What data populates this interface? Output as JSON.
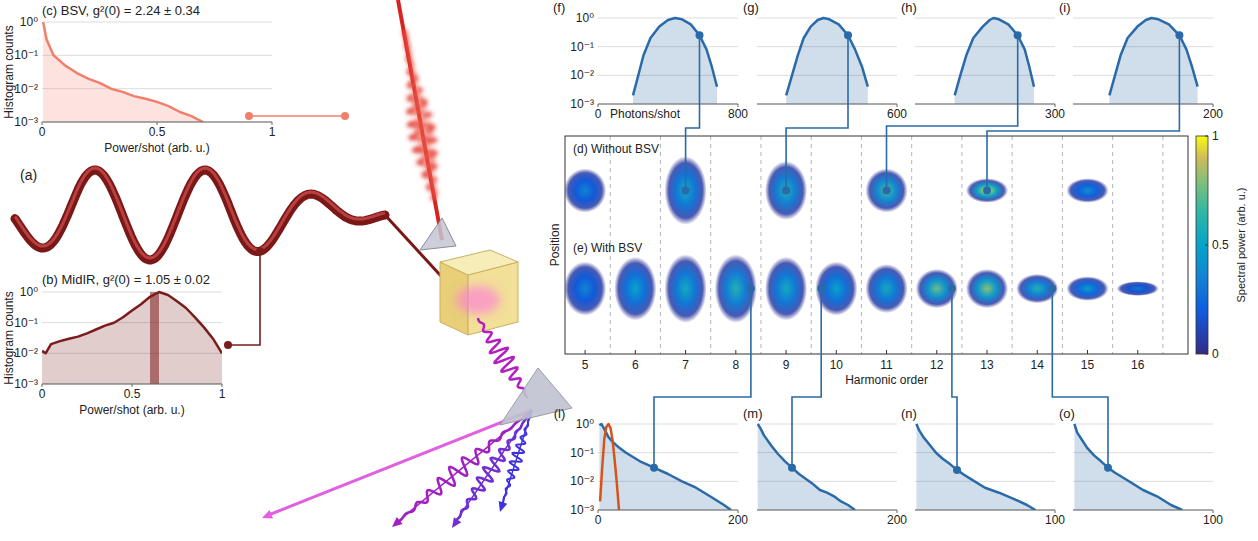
{
  "chart_data": [
    {
      "type": "schematic",
      "title": "(a)"
    },
    {
      "type": "area",
      "title": "(c) BSV, g²(0) = 2.24 ± 0.34",
      "xlabel": "Power/shot (arb. u.)",
      "ylabel": "Histogram counts",
      "log": "y",
      "grid": true,
      "xlim": [
        0,
        1
      ],
      "xticks": [
        0,
        0.5,
        1
      ],
      "ylim": [
        0.001,
        1
      ],
      "yticks": [
        {
          "value": 1,
          "label": "10⁰"
        },
        {
          "value": 0.1,
          "label": "10⁻¹"
        },
        {
          "value": 0.01,
          "label": "10⁻²"
        },
        {
          "value": 0.001,
          "label": "10⁻³"
        }
      ],
      "series": [
        {
          "color": "#f0806c",
          "x": [
            0.005,
            0.02,
            0.05,
            0.1,
            0.15,
            0.2,
            0.25,
            0.3,
            0.35,
            0.4,
            0.45,
            0.5,
            0.55,
            0.6,
            0.65,
            0.7
          ],
          "values": [
            1,
            0.3,
            0.1,
            0.05,
            0.03,
            0.02,
            0.015,
            0.01,
            0.008,
            0.006,
            0.005,
            0.004,
            0.003,
            0.002,
            0.0015,
            0.001
          ]
        }
      ]
    },
    {
      "type": "area",
      "title": "(b) MidIR, g²(0) = 1.05 ± 0.02",
      "xlabel": "Power/shot (arb. u.)",
      "ylabel": "Histogram counts",
      "log": "y",
      "grid": true,
      "xlim": [
        0,
        1
      ],
      "xticks": [
        0,
        0.5,
        1
      ],
      "ylim": [
        0.001,
        1
      ],
      "yticks": [
        {
          "value": 1,
          "label": "10⁰"
        },
        {
          "value": 0.1,
          "label": "10⁻¹"
        },
        {
          "value": 0.01,
          "label": "10⁻²"
        },
        {
          "value": 0.001,
          "label": "10⁻³"
        }
      ],
      "band": [
        0.6,
        0.65
      ],
      "series": [
        {
          "color": "#7b1c1c",
          "x": [
            0,
            0.02,
            0.05,
            0.1,
            0.15,
            0.2,
            0.25,
            0.3,
            0.35,
            0.4,
            0.45,
            0.5,
            0.55,
            0.6,
            0.65,
            0.7,
            0.75,
            0.8,
            0.85,
            0.9,
            0.95,
            1
          ],
          "values": [
            0.012,
            0.01,
            0.02,
            0.025,
            0.03,
            0.035,
            0.045,
            0.06,
            0.08,
            0.1,
            0.15,
            0.25,
            0.4,
            0.7,
            1,
            0.8,
            0.5,
            0.3,
            0.15,
            0.07,
            0.03,
            0.01
          ]
        }
      ]
    },
    {
      "type": "area",
      "title": "(f)",
      "xlabel": "Photons/shot",
      "log": "y",
      "grid": true,
      "harmonic": 7,
      "xlim": [
        0,
        800
      ],
      "xticks": [
        0,
        800
      ],
      "ylim": [
        0.001,
        1
      ],
      "yticks": [
        {
          "value": 1,
          "label": "10⁰"
        },
        {
          "value": 0.1,
          "label": "10⁻¹"
        },
        {
          "value": 0.01,
          "label": "10⁻²"
        },
        {
          "value": 0.001,
          "label": "10⁻³"
        }
      ],
      "series": [
        {
          "color": "#2a6aa8",
          "x": [
            200,
            230,
            260,
            300,
            350,
            400,
            440,
            480,
            530,
            580,
            620,
            650,
            680
          ],
          "values": [
            0.002,
            0.01,
            0.05,
            0.2,
            0.5,
            0.85,
            1,
            0.9,
            0.6,
            0.25,
            0.08,
            0.02,
            0.004
          ]
        }
      ]
    },
    {
      "type": "area",
      "title": "(g)",
      "log": "y",
      "grid": true,
      "tick_labels": "x",
      "harmonic": 9,
      "xlim": [
        0,
        600
      ],
      "xticks": [
        600
      ],
      "ylim": [
        0.001,
        1
      ],
      "yticks": [
        1,
        0.1,
        0.01,
        0.001
      ],
      "series": [
        {
          "color": "#2a6aa8",
          "x": [
            125,
            150,
            175,
            200,
            230,
            260,
            285,
            310,
            350,
            390,
            420,
            450,
            475
          ],
          "values": [
            0.002,
            0.01,
            0.05,
            0.2,
            0.5,
            0.85,
            1,
            0.9,
            0.6,
            0.25,
            0.08,
            0.02,
            0.004
          ]
        }
      ]
    },
    {
      "type": "area",
      "title": "(h)",
      "log": "y",
      "grid": true,
      "tick_labels": "x",
      "harmonic": 11,
      "xlim": [
        0,
        300
      ],
      "xticks": [
        300
      ],
      "ylim": [
        0.001,
        1
      ],
      "yticks": [
        1,
        0.1,
        0.01,
        0.001
      ],
      "series": [
        {
          "color": "#2a6aa8",
          "x": [
            85,
            97,
            110,
            125,
            145,
            160,
            168,
            180,
            200,
            220,
            235,
            245,
            255
          ],
          "values": [
            0.002,
            0.01,
            0.05,
            0.2,
            0.5,
            0.85,
            1,
            0.9,
            0.6,
            0.25,
            0.08,
            0.02,
            0.004
          ]
        }
      ]
    },
    {
      "type": "area",
      "title": "(i)",
      "log": "y",
      "grid": true,
      "tick_labels": "x",
      "harmonic": 13,
      "xlim": [
        0,
        200
      ],
      "xticks": [
        200
      ],
      "ylim": [
        0.001,
        1
      ],
      "yticks": [
        1,
        0.1,
        0.01,
        0.001
      ],
      "series": [
        {
          "color": "#2a6aa8",
          "x": [
            52,
            60,
            68,
            78,
            92,
            104,
            112,
            122,
            137,
            152,
            162,
            170,
            178
          ],
          "values": [
            0.002,
            0.01,
            0.05,
            0.2,
            0.5,
            0.85,
            1,
            0.9,
            0.6,
            0.25,
            0.08,
            0.02,
            0.004
          ]
        }
      ]
    },
    {
      "type": "image",
      "xlabel": "Harmonic order",
      "ylabel": "Position",
      "tick_labels": "x",
      "xlim": [
        4.6,
        17
      ],
      "xticks": [
        5,
        6,
        7,
        8,
        9,
        10,
        11,
        12,
        13,
        14,
        15,
        16
      ],
      "separators": [
        5.5,
        6.5,
        7.5,
        8.5,
        9.5,
        10.5,
        11.5,
        12.5,
        13.5,
        14.5,
        15.5,
        16.5
      ],
      "series": [
        {
          "name": "(d) Without BSV",
          "x": [
            5,
            7,
            9,
            11,
            13,
            15
          ],
          "values": [
            0.35,
            0.55,
            0.6,
            0.7,
            0.95,
            0.4
          ],
          "sizes": [
            0.45,
            0.7,
            0.6,
            0.45,
            0.25,
            0.25
          ]
        },
        {
          "name": "(e) With BSV",
          "x": [
            5,
            6,
            7,
            8,
            9,
            10,
            11,
            12,
            13,
            14,
            15,
            16
          ],
          "values": [
            0.35,
            0.5,
            0.55,
            0.6,
            0.55,
            0.5,
            0.55,
            0.75,
            0.8,
            0.6,
            0.45,
            0.3
          ],
          "sizes": [
            0.55,
            0.65,
            0.7,
            0.7,
            0.65,
            0.55,
            0.5,
            0.4,
            0.4,
            0.3,
            0.25,
            0.15
          ]
        }
      ],
      "colorbar": {
        "label": "Spectral power (arb. u.)",
        "range": [
          0,
          1
        ],
        "ticks": [
          0,
          0.5,
          1
        ]
      }
    },
    {
      "type": "area",
      "title": "(l)",
      "log": "y",
      "grid": true,
      "harmonic": 8,
      "xlim": [
        0,
        200
      ],
      "xticks": [
        0,
        200
      ],
      "ylim": [
        0.001,
        1
      ],
      "yticks": [
        {
          "value": 1,
          "label": "10⁰"
        },
        {
          "value": 0.1,
          "label": "10⁻¹"
        },
        {
          "value": 0.01,
          "label": "10⁻²"
        },
        {
          "value": 0.001,
          "label": "10⁻³"
        }
      ],
      "series": [
        {
          "color": "#2a6aa8",
          "x": [
            2,
            5,
            10,
            15,
            20,
            30,
            40,
            60,
            80,
            100,
            120,
            140,
            160,
            180,
            190
          ],
          "values": [
            0.9,
            1,
            0.6,
            0.35,
            0.25,
            0.15,
            0.1,
            0.05,
            0.03,
            0.018,
            0.01,
            0.006,
            0.003,
            0.0015,
            0.001
          ]
        },
        {
          "color": "#d95319",
          "type": "line",
          "x": [
            3,
            6,
            9,
            12,
            15,
            18,
            21,
            24,
            27,
            30
          ],
          "values": [
            0.002,
            0.03,
            0.3,
            0.8,
            1,
            0.7,
            0.25,
            0.05,
            0.008,
            0.001
          ]
        }
      ]
    },
    {
      "type": "area",
      "title": "(m)",
      "log": "y",
      "grid": true,
      "tick_labels": "x",
      "harmonic": 10,
      "xlim": [
        0,
        200
      ],
      "xticks": [
        200
      ],
      "ylim": [
        0.001,
        1
      ],
      "yticks": [
        1,
        0.1,
        0.01,
        0.001
      ],
      "series": [
        {
          "color": "#2a6aa8",
          "x": [
            1,
            5,
            10,
            20,
            30,
            40,
            50,
            60,
            70,
            80,
            90,
            100,
            110,
            120,
            130,
            140
          ],
          "values": [
            1,
            0.7,
            0.4,
            0.18,
            0.09,
            0.05,
            0.03,
            0.018,
            0.012,
            0.008,
            0.005,
            0.004,
            0.003,
            0.002,
            0.0015,
            0.001
          ]
        }
      ]
    },
    {
      "type": "area",
      "title": "(n)",
      "log": "y",
      "grid": true,
      "tick_labels": "x",
      "harmonic": 12,
      "xlim": [
        0,
        100
      ],
      "xticks": [
        100
      ],
      "ylim": [
        0.001,
        1
      ],
      "yticks": [
        1,
        0.1,
        0.01,
        0.001
      ],
      "series": [
        {
          "color": "#2a6aa8",
          "x": [
            1,
            3,
            6,
            10,
            15,
            20,
            25,
            30,
            35,
            40,
            50,
            60,
            70,
            80,
            86
          ],
          "values": [
            1,
            0.6,
            0.35,
            0.2,
            0.1,
            0.06,
            0.04,
            0.025,
            0.017,
            0.012,
            0.006,
            0.004,
            0.0025,
            0.0015,
            0.001
          ]
        }
      ]
    },
    {
      "type": "area",
      "title": "(o)",
      "log": "y",
      "grid": true,
      "tick_labels": "x",
      "harmonic": 14,
      "xlim": [
        0,
        100
      ],
      "xticks": [
        100
      ],
      "ylim": [
        0.001,
        1
      ],
      "yticks": [
        1,
        0.1,
        0.01,
        0.001
      ],
      "series": [
        {
          "color": "#2a6aa8",
          "x": [
            1,
            3,
            6,
            10,
            15,
            20,
            25,
            30,
            40,
            50,
            60,
            70,
            78
          ],
          "values": [
            1,
            0.5,
            0.3,
            0.15,
            0.08,
            0.05,
            0.03,
            0.02,
            0.01,
            0.005,
            0.003,
            0.0015,
            0.001
          ]
        }
      ]
    }
  ]
}
